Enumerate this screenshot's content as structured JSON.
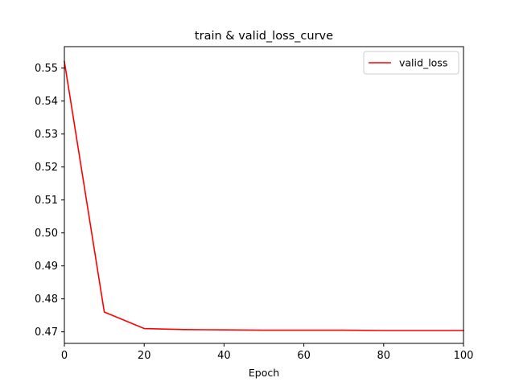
{
  "chart_data": {
    "type": "line",
    "title": "train & valid_loss_curve",
    "xlabel": "Epoch",
    "ylabel": "",
    "xlim": [
      0,
      100
    ],
    "ylim": [
      0.4665,
      0.5565
    ],
    "xticks": [
      0,
      20,
      40,
      60,
      80,
      100
    ],
    "yticks": [
      0.47,
      0.48,
      0.49,
      0.5,
      0.51,
      0.52,
      0.53,
      0.54,
      0.55
    ],
    "grid": false,
    "legend_position": "top-right",
    "series": [
      {
        "name": "valid_loss",
        "color": "#ff0000",
        "x": [
          0,
          10,
          20,
          30,
          40,
          50,
          60,
          70,
          80,
          90,
          100
        ],
        "values": [
          0.552,
          0.476,
          0.471,
          0.4707,
          0.4706,
          0.4705,
          0.4705,
          0.4705,
          0.4704,
          0.4704,
          0.4704
        ]
      }
    ]
  }
}
